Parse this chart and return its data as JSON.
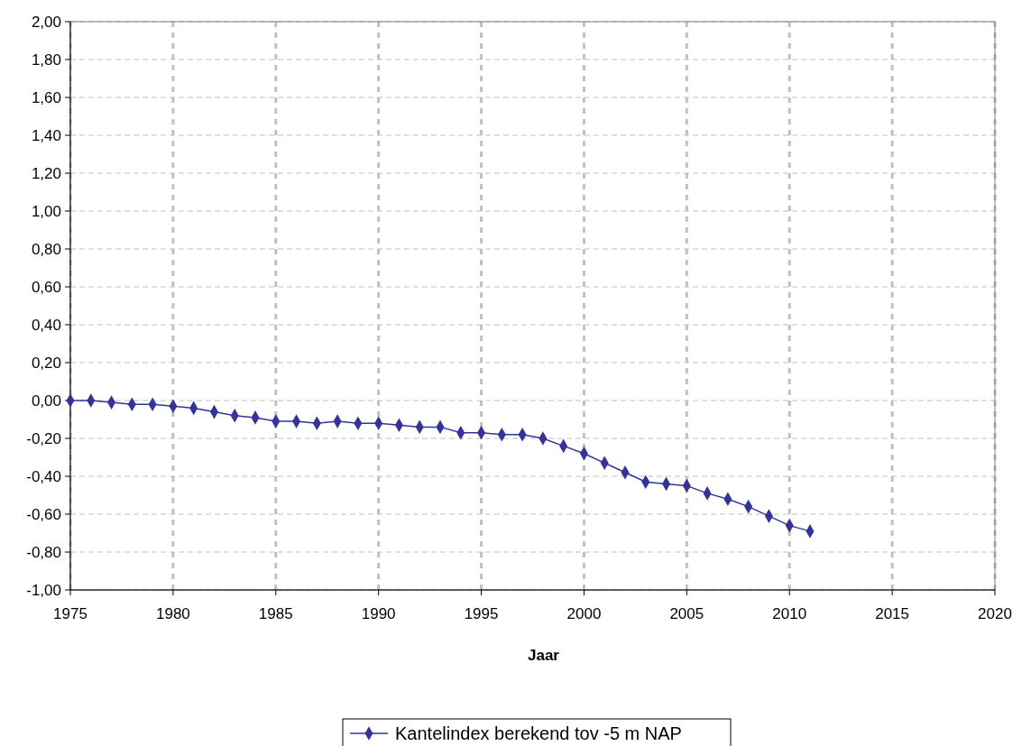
{
  "chart_data": {
    "type": "line",
    "xlabel": "Jaar",
    "x": [
      1975,
      1976,
      1977,
      1978,
      1979,
      1980,
      1981,
      1982,
      1983,
      1984,
      1985,
      1986,
      1987,
      1988,
      1989,
      1990,
      1991,
      1992,
      1993,
      1994,
      1995,
      1996,
      1997,
      1998,
      1999,
      2000,
      2001,
      2002,
      2003,
      2004,
      2005,
      2006,
      2007,
      2008,
      2009,
      2010,
      2011
    ],
    "series": [
      {
        "name": "Kantelindex berekend tov -5 m NAP",
        "color": "#333399",
        "values": [
          0,
          0,
          -0.01,
          -0.02,
          -0.02,
          -0.03,
          -0.04,
          -0.06,
          -0.08,
          -0.09,
          -0.11,
          -0.11,
          -0.12,
          -0.11,
          -0.12,
          -0.12,
          -0.13,
          -0.14,
          -0.14,
          -0.17,
          -0.17,
          -0.18,
          -0.18,
          -0.2,
          -0.24,
          -0.28,
          -0.33,
          -0.38,
          -0.43,
          -0.44,
          -0.45,
          -0.49,
          -0.52,
          -0.56,
          -0.61,
          -0.66,
          -0.69
        ]
      }
    ],
    "xlim": [
      1975,
      2020
    ],
    "xticks": [
      1975,
      1980,
      1985,
      1990,
      1995,
      2000,
      2005,
      2010,
      2015,
      2020
    ],
    "ylim": [
      -1,
      2
    ],
    "yticks": [
      {
        "value": -1,
        "label": "-1,00"
      },
      {
        "value": -0.8,
        "label": "-0,80"
      },
      {
        "value": -0.6,
        "label": "-0,60"
      },
      {
        "value": -0.4,
        "label": "-0,40"
      },
      {
        "value": -0.2,
        "label": "-0,20"
      },
      {
        "value": 0,
        "label": "0,00"
      },
      {
        "value": 0.2,
        "label": "0,20"
      },
      {
        "value": 0.4,
        "label": "0,40"
      },
      {
        "value": 0.6,
        "label": "0,60"
      },
      {
        "value": 0.8,
        "label": "0,80"
      },
      {
        "value": 1,
        "label": "1,00"
      },
      {
        "value": 1.2,
        "label": "1,20"
      },
      {
        "value": 1.4,
        "label": "1,40"
      },
      {
        "value": 1.6,
        "label": "1,60"
      },
      {
        "value": 1.8,
        "label": "1,80"
      },
      {
        "value": 2,
        "label": "2,00"
      }
    ],
    "grid": true,
    "legend": "bottom",
    "marker": "diamond",
    "line_style": "solid"
  }
}
